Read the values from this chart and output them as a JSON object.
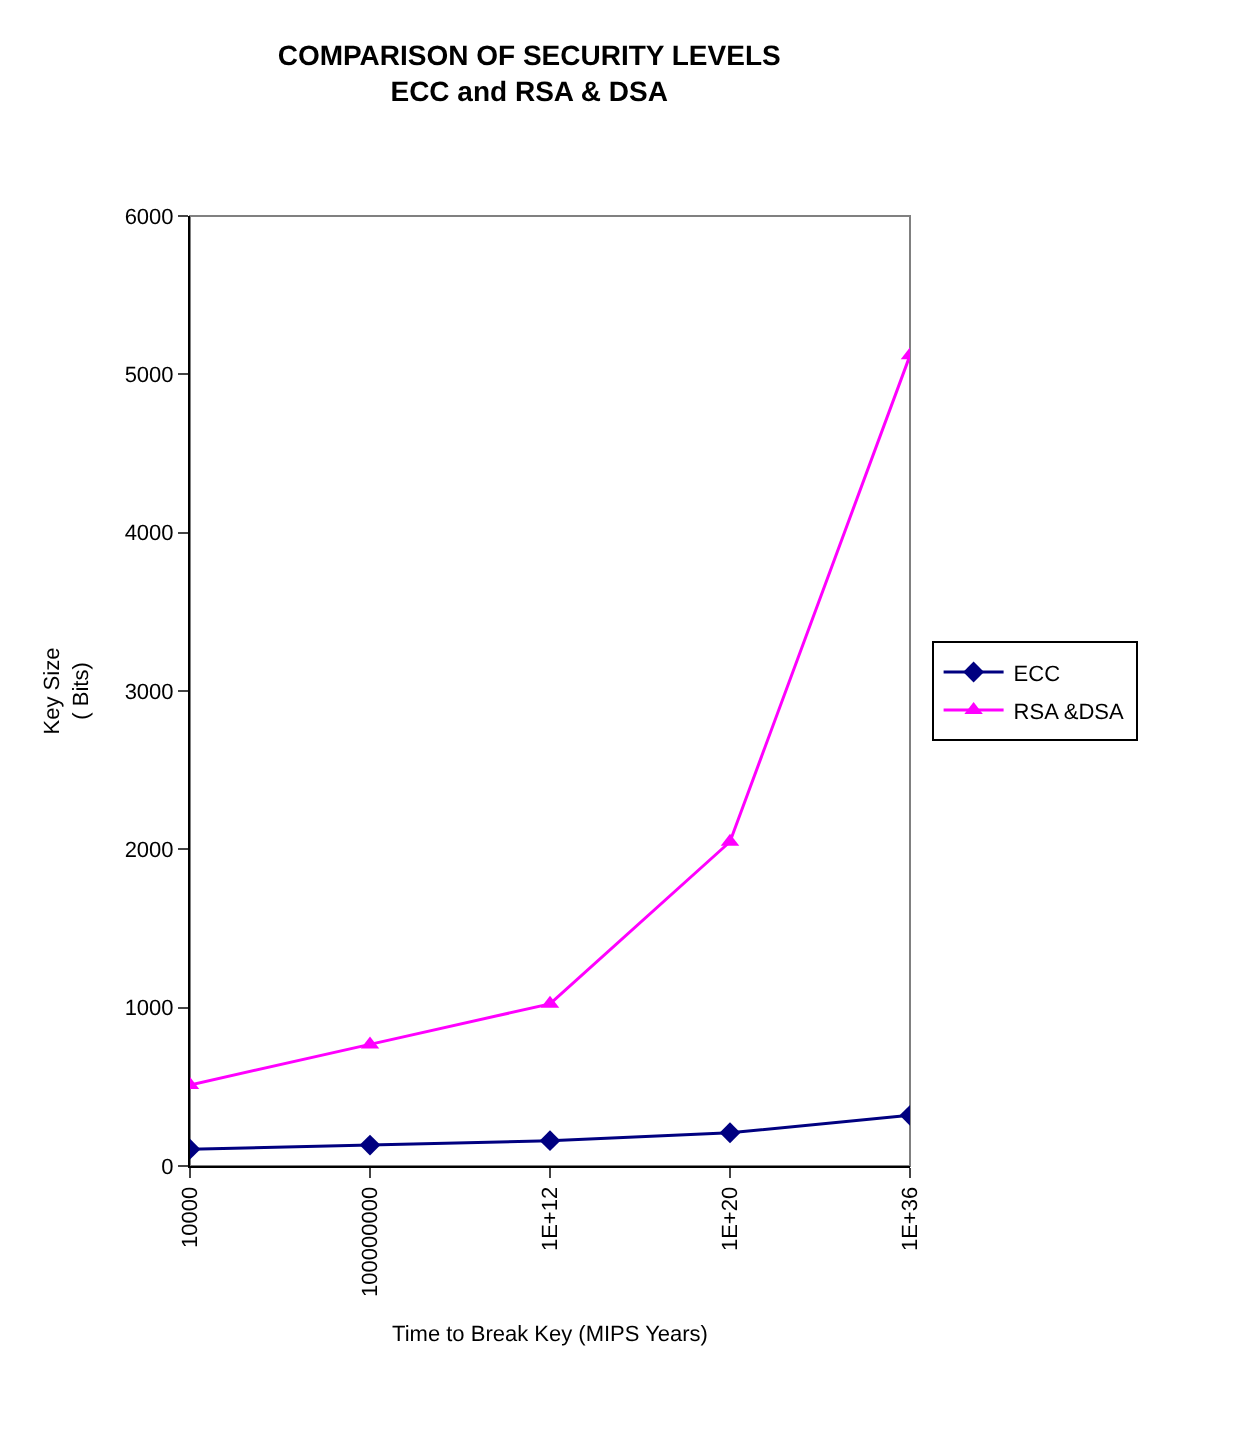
{
  "chart_data": {
    "type": "line",
    "title": "COMPARISON OF SECURITY LEVELS\nECC and RSA & DSA",
    "xlabel": "Time to Break Key (MIPS Years)",
    "ylabel": "Key Size\n( Bits)",
    "categories": [
      "10000",
      "100000000",
      "1E+12",
      "1E+20",
      "1E+36"
    ],
    "series": [
      {
        "name": "ECC",
        "color": "#000080",
        "marker": "diamond",
        "values": [
          106,
          132,
          160,
          210,
          320
        ]
      },
      {
        "name": "RSA &DSA",
        "color": "#ff00ff",
        "marker": "triangle",
        "values": [
          512,
          768,
          1024,
          2048,
          5120
        ]
      }
    ],
    "ylim": [
      0,
      6000
    ],
    "yticks": [
      0,
      1000,
      2000,
      3000,
      4000,
      5000,
      6000
    ],
    "grid": false,
    "legend": "right",
    "line_style": "solid"
  }
}
